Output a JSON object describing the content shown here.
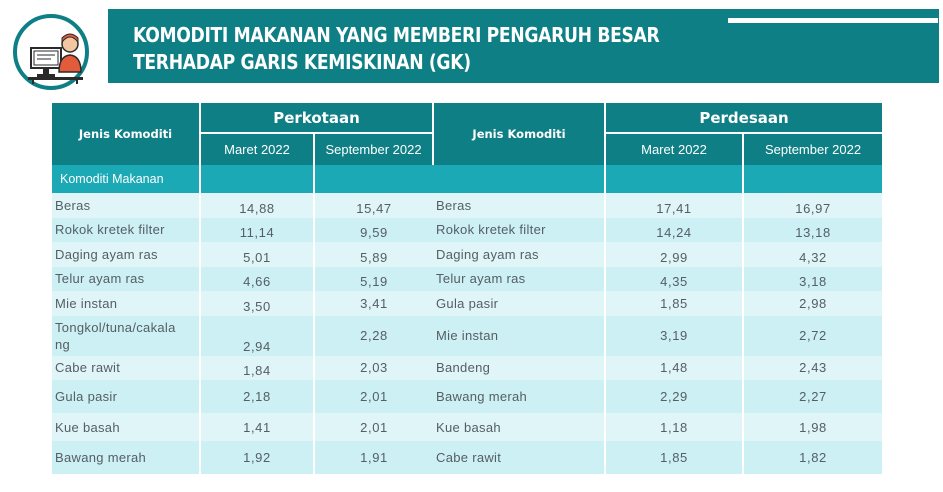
{
  "header": {
    "title": "KOMODITI MAKANAN YANG MEMBERI PENGARUH BESAR\nTERHADAP GARIS KEMISKINAN (GK)",
    "logo_icon": "person-at-computer-icon",
    "accent_color": "#0f7f86"
  },
  "table": {
    "col_commodity": "Jenis Komoditi",
    "group_urban": "Perkotaan",
    "group_rural": "Perdesaan",
    "sub_march": "Maret 2022",
    "sub_september": "September 2022",
    "section_label": "Komoditi Makanan",
    "rows": [
      {
        "urban_name": "Beras",
        "urban_mar": "14,88",
        "urban_sep": "15,47",
        "rural_name": "Beras",
        "rural_mar": "17,41",
        "rural_sep": "16,97"
      },
      {
        "urban_name": "Rokok kretek filter",
        "urban_mar": "11,14",
        "urban_sep": "9,59",
        "rural_name": "Rokok kretek filter",
        "rural_mar": "14,24",
        "rural_sep": "13,18"
      },
      {
        "urban_name": "Daging ayam ras",
        "urban_mar": "5,01",
        "urban_sep": "5,89",
        "rural_name": "Daging ayam ras",
        "rural_mar": "2,99",
        "rural_sep": "4,32"
      },
      {
        "urban_name": "Telur ayam ras",
        "urban_mar": "4,66",
        "urban_sep": "5,19",
        "rural_name": "Telur ayam ras",
        "rural_mar": "4,35",
        "rural_sep": "3,18"
      },
      {
        "urban_name": "Mie instan",
        "urban_mar": "3,50",
        "urban_sep": "3,41",
        "rural_name": "Gula pasir",
        "rural_mar": "1,85",
        "rural_sep": "2,98"
      },
      {
        "urban_name": "Tongkol/tuna/cakala\nng",
        "urban_mar": "2,94",
        "urban_sep": "2,28",
        "rural_name": "Mie instan",
        "rural_mar": "3,19",
        "rural_sep": "2,72"
      },
      {
        "urban_name": "Cabe rawit",
        "urban_mar": "1,84",
        "urban_sep": "2,03",
        "rural_name": "Bandeng",
        "rural_mar": "1,48",
        "rural_sep": "2,43"
      },
      {
        "urban_name": "Gula pasir",
        "urban_mar": "2,18",
        "urban_sep": "2,01",
        "rural_name": "Bawang merah",
        "rural_mar": "2,29",
        "rural_sep": "2,27"
      },
      {
        "urban_name": "Kue basah",
        "urban_mar": "1,41",
        "urban_sep": "2,01",
        "rural_name": "Kue basah",
        "rural_mar": "1,18",
        "rural_sep": "1,98"
      },
      {
        "urban_name": "Bawang merah",
        "urban_mar": "1,92",
        "urban_sep": "1,91",
        "rural_name": "Cabe rawit",
        "rural_mar": "1,85",
        "rural_sep": "1,82"
      }
    ]
  }
}
